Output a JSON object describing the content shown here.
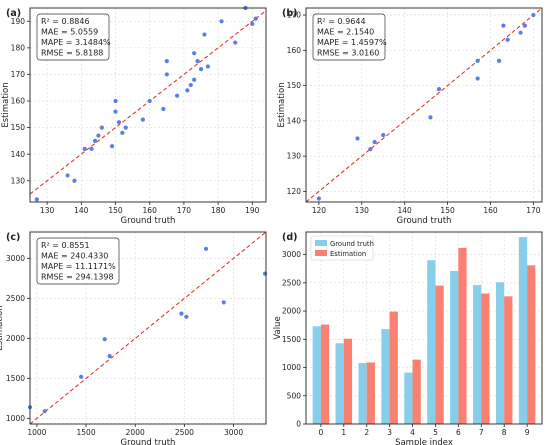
{
  "figure": {
    "panels": [
      {
        "panel_label": "(a)",
        "stats": [
          "R² = 0.8846",
          "MAE = 5.0559",
          "MAPE = 3.1484%",
          "RMSE = 5.8188"
        ],
        "xlabel": "Ground truth",
        "ylabel": "Estimation",
        "xticks": [
          "130",
          "140",
          "150",
          "160",
          "170",
          "180",
          "190"
        ],
        "yticks": [
          "130",
          "140",
          "150",
          "160",
          "170",
          "180",
          "190"
        ]
      },
      {
        "panel_label": "(b)",
        "stats": [
          "R² = 0.9644",
          "MAE = 2.1540",
          "MAPE = 1.4597%",
          "RMSE = 3.0160"
        ],
        "xlabel": "Ground truth",
        "ylabel": "Estimation",
        "xticks": [
          "120",
          "130",
          "140",
          "150",
          "160",
          "170"
        ],
        "yticks": [
          "120",
          "130",
          "140",
          "150",
          "160",
          "170"
        ]
      },
      {
        "panel_label": "(c)",
        "stats": [
          "R² = 0.8551",
          "MAE = 240.4330",
          "MAPE = 11.1171%",
          "RMSE = 294.1398"
        ],
        "xlabel": "Ground truth",
        "ylabel": "Estimation",
        "xticks": [
          "1000",
          "1500",
          "2000",
          "2500",
          "3000"
        ],
        "yticks": [
          "1000",
          "1500",
          "2000",
          "2500",
          "3000"
        ]
      },
      {
        "panel_label": "(d)",
        "stats": [],
        "xlabel": "Sample index",
        "ylabel": "Value",
        "xticks": [
          "0",
          "1",
          "2",
          "3",
          "4",
          "5",
          "6",
          "7",
          "8",
          "9"
        ],
        "yticks": [
          "0",
          "500",
          "1000",
          "1500",
          "2000",
          "2500",
          "3000"
        ]
      }
    ]
  },
  "chart_data": [
    {
      "type": "scatter",
      "panel": "(a)",
      "xlabel": "Ground truth",
      "ylabel": "Estimation",
      "xlim": [
        125,
        194
      ],
      "ylim": [
        122,
        195
      ],
      "x": [
        127,
        136,
        138,
        141,
        143,
        144,
        145,
        146,
        149,
        150,
        150,
        151,
        152,
        153,
        158,
        160,
        164,
        165,
        165,
        168,
        171,
        172,
        173,
        173,
        174,
        175,
        176,
        177,
        181,
        185,
        188,
        190,
        191
      ],
      "y": [
        123,
        132,
        130,
        142,
        142,
        145,
        147,
        150,
        143,
        156,
        160,
        152,
        148,
        150,
        153,
        160,
        157,
        170,
        175,
        162,
        164,
        166,
        168,
        178,
        175,
        172,
        185,
        173,
        190,
        182,
        195,
        189,
        191
      ],
      "colors": {
        "point": "#5b7fe0",
        "reference_line": "#e0241b"
      }
    },
    {
      "type": "scatter",
      "panel": "(b)",
      "xlabel": "Ground truth",
      "ylabel": "Estimation",
      "xlim": [
        117,
        172
      ],
      "ylim": [
        117,
        172
      ],
      "x": [
        120,
        129,
        132,
        133,
        135,
        146,
        148,
        157,
        157,
        162,
        163,
        164,
        167,
        168,
        170
      ],
      "y": [
        118,
        135,
        132,
        134,
        136,
        141,
        149,
        152,
        157,
        157,
        167,
        163,
        165,
        167,
        170
      ],
      "colors": {
        "point": "#5b7fe0",
        "reference_line": "#e0241b"
      }
    },
    {
      "type": "scatter",
      "panel": "(c)",
      "xlabel": "Ground truth",
      "ylabel": "Estimation",
      "xlim": [
        930,
        3330
      ],
      "ylim": [
        930,
        3330
      ],
      "x": [
        930,
        1080,
        1450,
        1690,
        1740,
        2470,
        2520,
        2720,
        2900,
        3320
      ],
      "y": [
        1140,
        1090,
        1520,
        1990,
        1780,
        2310,
        2270,
        3120,
        2450,
        2810
      ],
      "colors": {
        "point": "#5b7fe0",
        "reference_line": "#e0241b"
      }
    },
    {
      "type": "bar",
      "panel": "(d)",
      "xlabel": "Sample index",
      "ylabel": "Value",
      "categories": [
        "0",
        "1",
        "2",
        "3",
        "4",
        "5",
        "6",
        "7",
        "8",
        "9"
      ],
      "ylim": [
        0,
        3400
      ],
      "grid": true,
      "legend_position": "top-left",
      "series": [
        {
          "name": "Ground truth",
          "color": "#87ceeb",
          "values": [
            1730,
            1430,
            1080,
            1680,
            910,
            2900,
            2710,
            2460,
            2510,
            3310
          ]
        },
        {
          "name": "Estimation",
          "color": "#fa8072",
          "values": [
            1760,
            1510,
            1090,
            1990,
            1140,
            2450,
            3120,
            2310,
            2260,
            2810
          ]
        }
      ]
    }
  ]
}
